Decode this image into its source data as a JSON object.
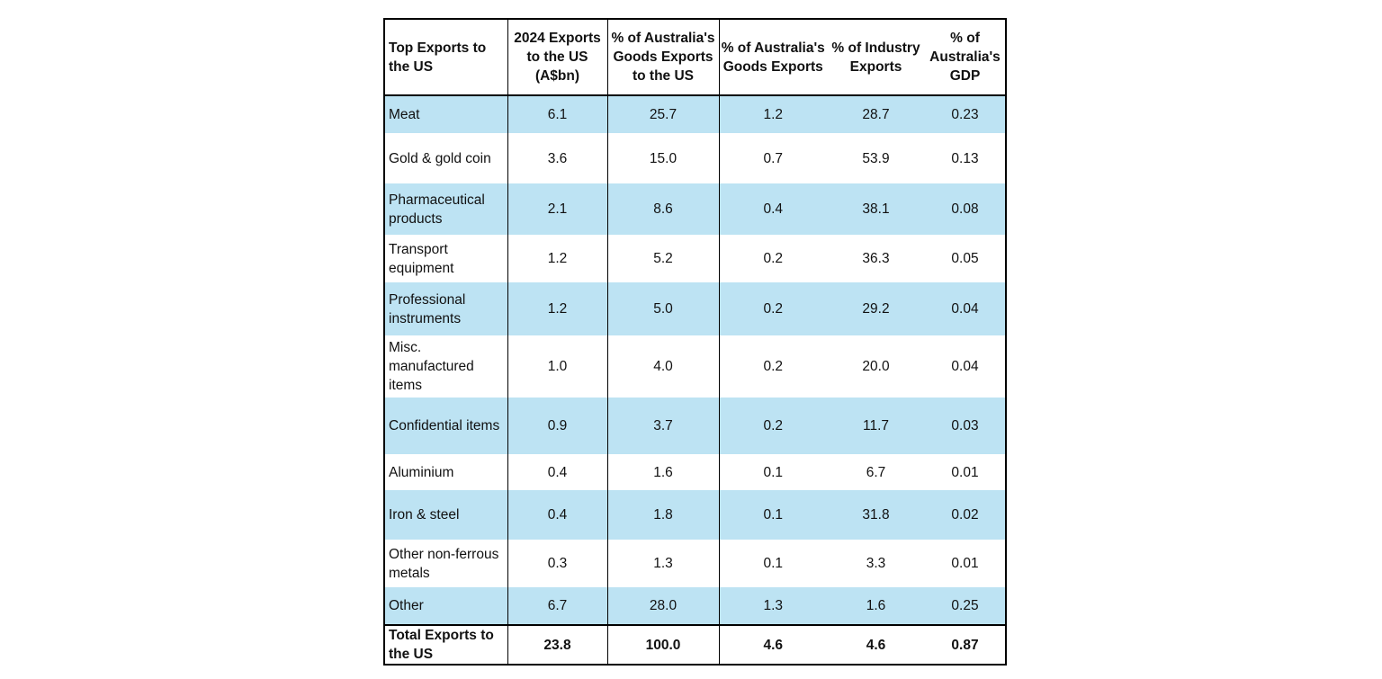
{
  "table": {
    "headers": [
      "Top Exports to the US",
      "2024 Exports to the US (A$bn)",
      "% of Australia's Goods Exports to the US",
      "% of Australia's Goods Exports",
      "% of Industry Exports",
      "% of Australia's GDP"
    ],
    "rows": [
      {
        "name": "Meat",
        "v": [
          "6.1",
          "25.7",
          "1.2",
          "28.7",
          "0.23"
        ]
      },
      {
        "name": "Gold & gold coin",
        "v": [
          "3.6",
          "15.0",
          "0.7",
          "53.9",
          "0.13"
        ]
      },
      {
        "name": "Pharmaceutical products",
        "v": [
          "2.1",
          "8.6",
          "0.4",
          "38.1",
          "0.08"
        ]
      },
      {
        "name": "Transport equipment",
        "v": [
          "1.2",
          "5.2",
          "0.2",
          "36.3",
          "0.05"
        ]
      },
      {
        "name": "Professional instruments",
        "v": [
          "1.2",
          "5.0",
          "0.2",
          "29.2",
          "0.04"
        ]
      },
      {
        "name": "Misc. manufactured items",
        "v": [
          "1.0",
          "4.0",
          "0.2",
          "20.0",
          "0.04"
        ]
      },
      {
        "name": "Confidential items",
        "v": [
          "0.9",
          "3.7",
          "0.2",
          "11.7",
          "0.03"
        ]
      },
      {
        "name": "Aluminium",
        "v": [
          "0.4",
          "1.6",
          "0.1",
          "6.7",
          "0.01"
        ]
      },
      {
        "name": "Iron & steel",
        "v": [
          "0.4",
          "1.8",
          "0.1",
          "31.8",
          "0.02"
        ]
      },
      {
        "name": "Other non-ferrous metals",
        "v": [
          "0.3",
          "1.3",
          "0.1",
          "3.3",
          "0.01"
        ]
      },
      {
        "name": "Other",
        "v": [
          "6.7",
          "28.0",
          "1.3",
          "1.6",
          "0.25"
        ]
      }
    ],
    "total": {
      "name": "Total Exports to the US",
      "v": [
        "23.8",
        "100.0",
        "4.6",
        "4.6",
        "0.87"
      ]
    }
  },
  "colors": {
    "row_shade": "#bde3f3",
    "border": "#000000"
  }
}
